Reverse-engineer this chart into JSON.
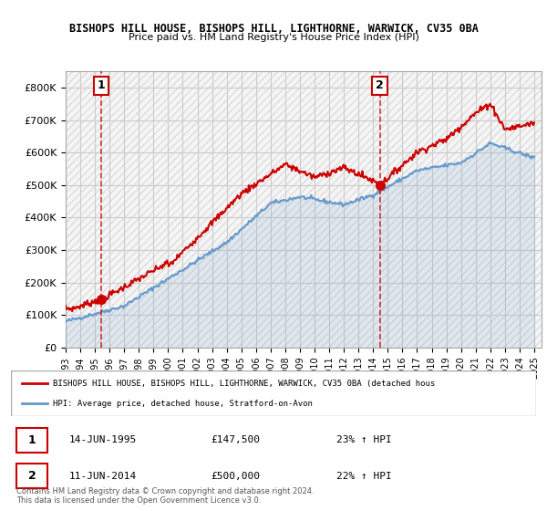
{
  "title1": "BISHOPS HILL HOUSE, BISHOPS HILL, LIGHTHORNE, WARWICK, CV35 0BA",
  "title2": "Price paid vs. HM Land Registry's House Price Index (HPI)",
  "ylabel": "",
  "ylim": [
    0,
    850000
  ],
  "yticks": [
    0,
    100000,
    200000,
    300000,
    400000,
    500000,
    600000,
    700000,
    800000
  ],
  "ytick_labels": [
    "£0",
    "£100K",
    "£200K",
    "£300K",
    "£400K",
    "£500K",
    "£600K",
    "£700K",
    "£800K"
  ],
  "xlim_start": 1993.0,
  "xlim_end": 2025.5,
  "sale1_x": 1995.45,
  "sale1_y": 147500,
  "sale1_label": "1",
  "sale1_date": "14-JUN-1995",
  "sale1_price": "£147,500",
  "sale1_hpi": "23% ↑ HPI",
  "sale2_x": 2014.45,
  "sale2_y": 500000,
  "sale2_label": "2",
  "sale2_date": "11-JUN-2014",
  "sale2_price": "£500,000",
  "sale2_hpi": "22% ↑ HPI",
  "red_color": "#cc0000",
  "blue_color": "#6699cc",
  "bg_hatch_color": "#e8e8e8",
  "grid_color": "#cccccc",
  "legend1": "BISHOPS HILL HOUSE, BISHOPS HILL, LIGHTHORNE, WARWICK, CV35 0BA (detached hous",
  "legend2": "HPI: Average price, detached house, Stratford-on-Avon",
  "copyright": "Contains HM Land Registry data © Crown copyright and database right 2024.\nThis data is licensed under the Open Government Licence v3.0."
}
